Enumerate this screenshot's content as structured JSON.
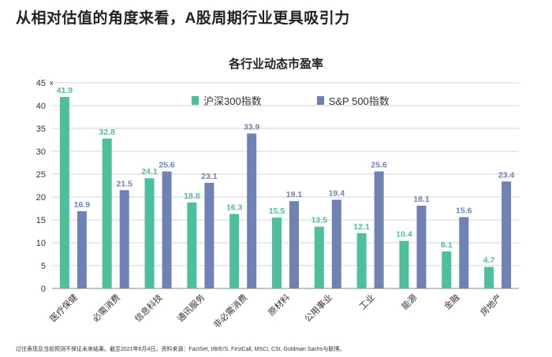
{
  "slide": {
    "title": "从相对估值的角度来看，A股周期行业更具吸引力",
    "footnote": "过往表现及当前预测不保证未来结果。截至2021年6月4日。资料来源：FactSet, I/B/E/S, FirstCall, MSCI, CSI, Goldman Sachs与联博。"
  },
  "colors": {
    "csi300": "#4dbf9c",
    "sp500": "#6f82b4",
    "grid": "#d6d6d6",
    "axis": "#888888"
  },
  "chart_data": {
    "type": "bar",
    "title": "各行业动态市盈率",
    "y_unit_marker": "x",
    "ylim": [
      0,
      45
    ],
    "yticks": [
      0,
      5,
      10,
      15,
      20,
      25,
      30,
      35,
      40,
      45
    ],
    "grid": true,
    "legend_position": "top",
    "categories": [
      "医疗保健",
      "必需消费",
      "信息科技",
      "通讯服务",
      "非必需消费",
      "原材料",
      "公用事业",
      "工业",
      "能源",
      "金融",
      "房地产"
    ],
    "series": [
      {
        "name": "沪深300指数",
        "values": [
          41.9,
          32.8,
          24.1,
          18.8,
          16.3,
          15.5,
          13.5,
          12.1,
          10.4,
          8.1,
          4.7
        ]
      },
      {
        "name": "S&P 500指数",
        "values": [
          16.9,
          21.5,
          25.6,
          23.1,
          33.9,
          19.1,
          19.4,
          25.6,
          18.1,
          15.6,
          23.4
        ]
      }
    ]
  }
}
